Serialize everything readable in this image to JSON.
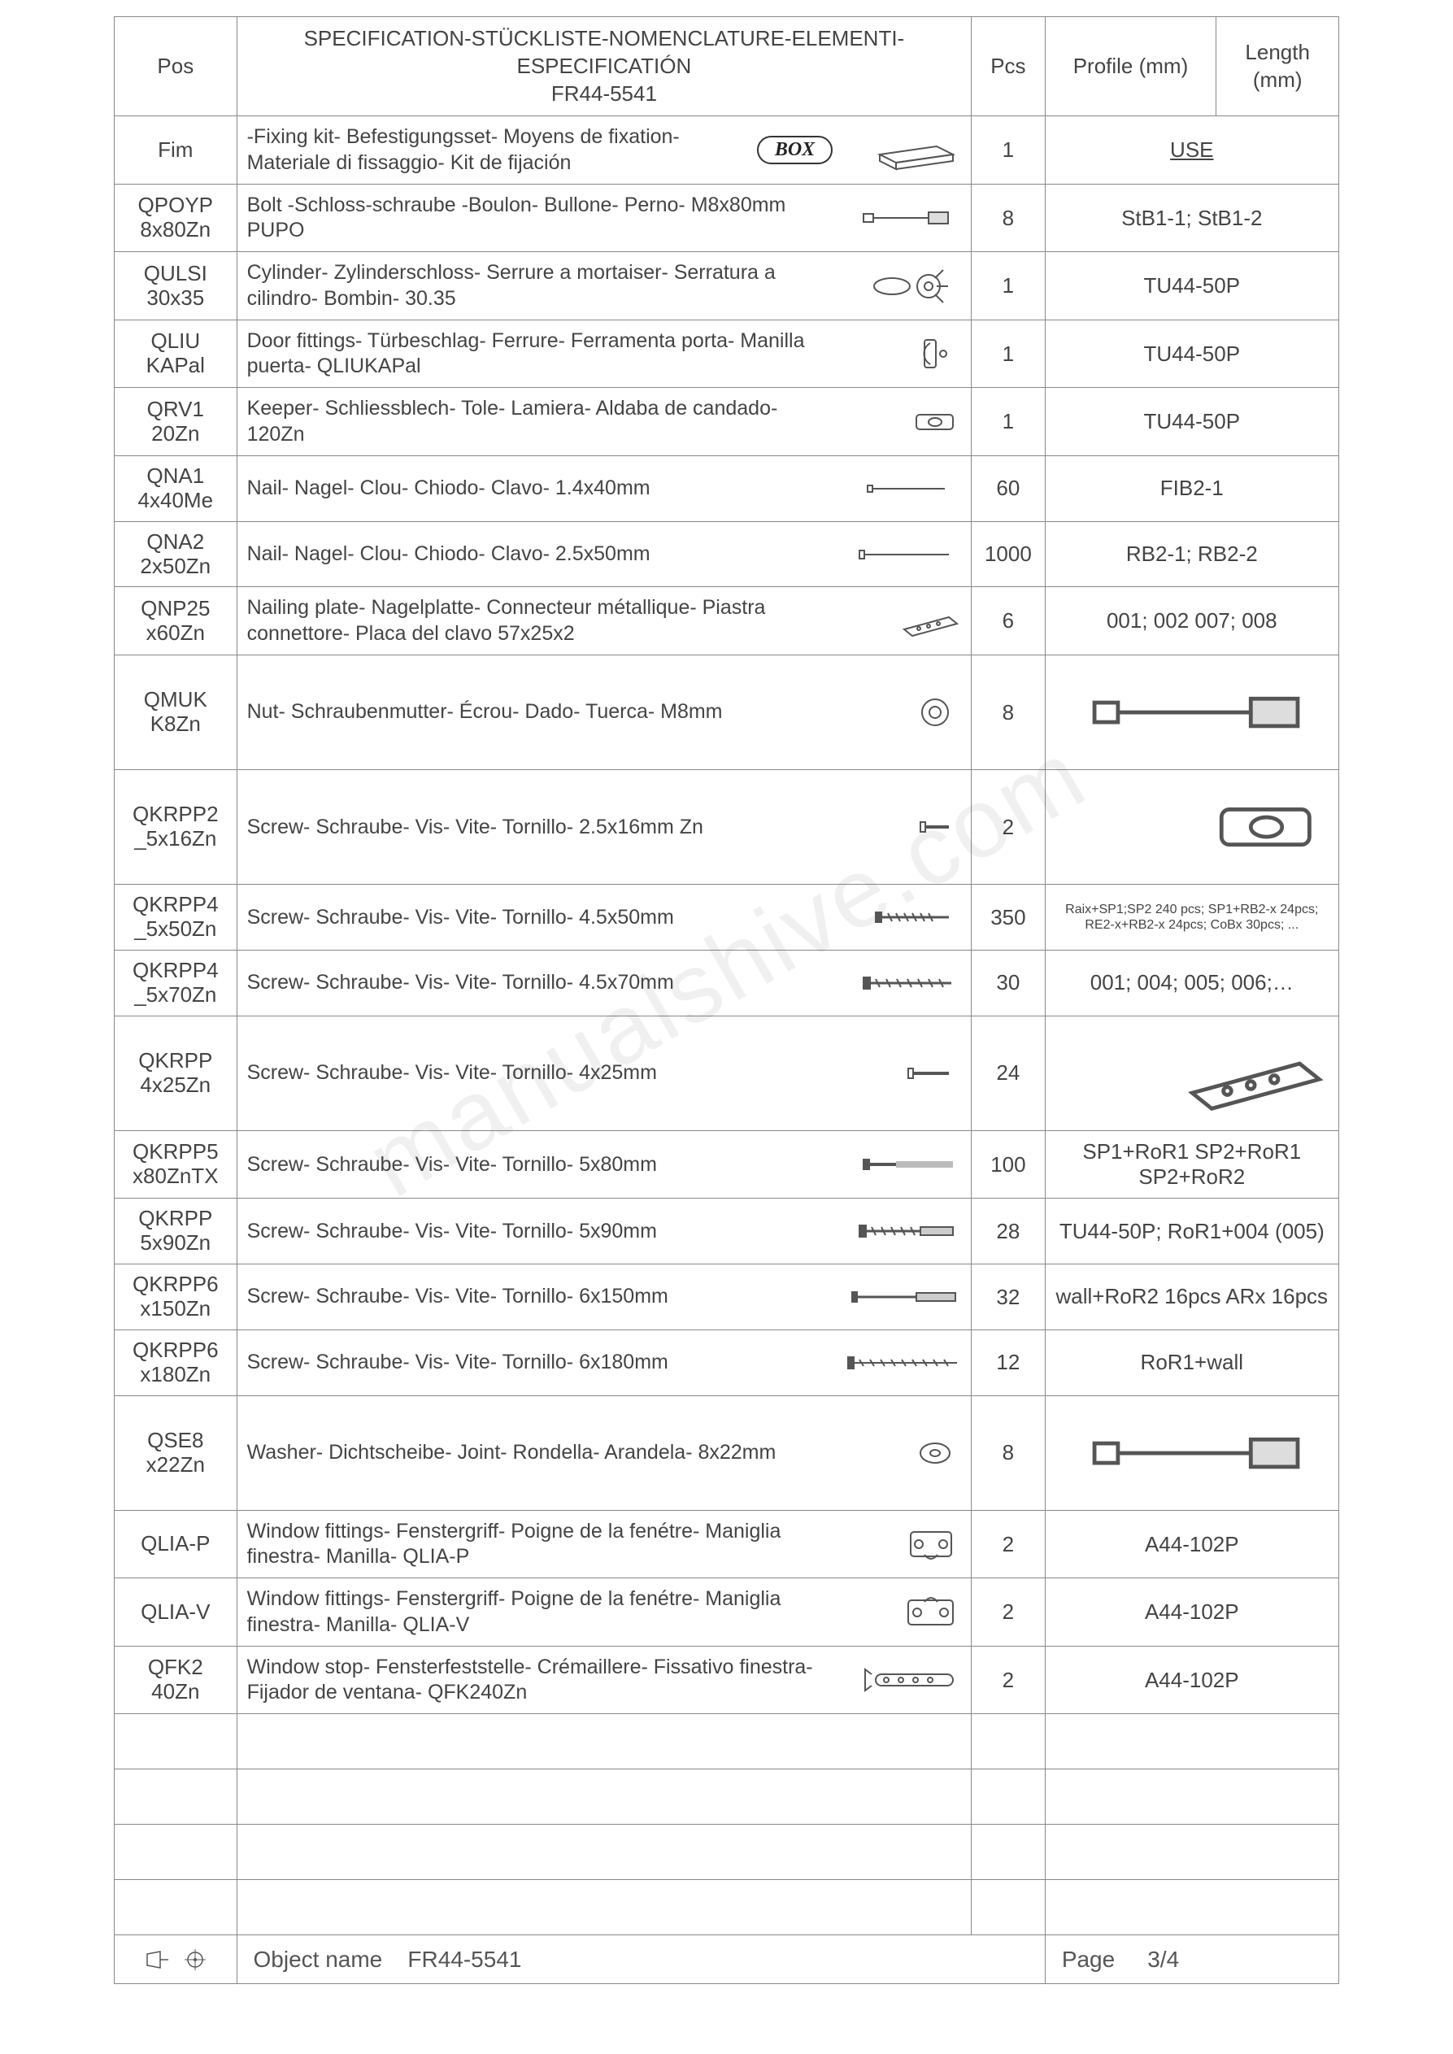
{
  "header": {
    "pos": "Pos",
    "spec_line1": "SPECIFICATION-STÜCKLISTE-NOMENCLATURE-ELEMENTI-ESPECIFICATIÓN",
    "spec_line2": "FR44-5541",
    "pcs": "Pcs",
    "profile": "Profile (mm)",
    "length": "Length (mm)"
  },
  "watermark": "manualshive.com",
  "rows": [
    {
      "pos": "Fim",
      "desc": "-Fixing kit- Befestigungsset- Moyens de fixation- Materiale di fissaggio- Kit de fijación",
      "box": "BOX",
      "pcs": "1",
      "profile": "USE",
      "profile_style": "use",
      "icon": "box"
    },
    {
      "pos": "QPOYP 8x80Zn",
      "desc": "Bolt -Schloss-schraube -Boulon- Bullone- Perno- M8x80mm PUPO",
      "pcs": "8",
      "profile": "StB1-1; StB1-2",
      "icon": "bolt"
    },
    {
      "pos": "QULSI 30x35",
      "desc": "Cylinder- Zylinderschloss- Serrure a mortaiser- Serratura a cilindro- Bombin- 30.35",
      "pcs": "1",
      "profile": "TU44-50P",
      "icon": "cylinder"
    },
    {
      "pos": "QLIU KAPal",
      "desc": "Door fittings- Türbeschlag- Ferrure- Ferramenta porta- Manilla puerta- QLIUKAPal",
      "pcs": "1",
      "profile": "TU44-50P",
      "icon": "doorfit"
    },
    {
      "pos": "QRV1 20Zn",
      "desc": "Keeper- Schliessblech- Tole- Lamiera- Aldaba de candado- 120Zn",
      "pcs": "1",
      "profile": "TU44-50P",
      "icon": "keeper"
    },
    {
      "pos": "QNA1 4x40Me",
      "desc": "Nail- Nagel- Clou- Chiodo- Clavo- 1.4x40mm",
      "pcs": "60",
      "profile": "FIB2-1",
      "icon": "nail1"
    },
    {
      "pos": "QNA2 2x50Zn",
      "desc": "Nail- Nagel- Clou- Chiodo- Clavo- 2.5x50mm",
      "pcs": "1000",
      "profile": "RB2-1; RB2-2",
      "icon": "nail2"
    },
    {
      "pos": "QNP25 x60Zn",
      "desc": "Nailing plate- Nagelplatte- Connecteur métallique- Piastra connettore- Placa del clavo 57x25x2",
      "pcs": "6",
      "profile": "001; 002 007; 008",
      "icon": "plate"
    },
    {
      "pos": "QMUK K8Zn",
      "desc": "Nut- Schraubenmutter- Écrou- Dado- Tuerca- M8mm",
      "pcs": "8",
      "profile_icon": "bolt",
      "icon": "nut"
    },
    {
      "pos": "QKRPP2 _5x16Zn",
      "desc": "Screw- Schraube- Vis- Vite- Tornillo- 2.5x16mm Zn",
      "pcs": "2",
      "profile_icon": "keeper",
      "icon": "screw16"
    },
    {
      "pos": "QKRPP4 _5x50Zn",
      "desc": "Screw- Schraube- Vis- Vite- Tornillo- 4.5x50mm",
      "pcs": "350",
      "profile": "Raix+SP1;SP2 240 pcs; SP1+RB2-x 24pcs; RE2-x+RB2-x 24pcs; CoBx 30pcs; ...",
      "profile_small": true,
      "icon": "screw50"
    },
    {
      "pos": "QKRPP4 _5x70Zn",
      "desc": "Screw- Schraube- Vis- Vite- Tornillo- 4.5x70mm",
      "pcs": "30",
      "profile": "001; 004; 005; 006;…",
      "icon": "screw70"
    },
    {
      "pos": "QKRPP 4x25Zn",
      "desc": "Screw- Schraube- Vis- Vite- Tornillo- 4x25mm",
      "pcs": "24",
      "profile_icon": "plate",
      "icon": "screw25"
    },
    {
      "pos": "QKRPP5 x80ZnTX",
      "desc": "Screw- Schraube- Vis- Vite- Tornillo- 5x80mm",
      "pcs": "100",
      "profile": "SP1+RoR1 SP2+RoR1 SP2+RoR2",
      "icon": "screw80"
    },
    {
      "pos": "QKRPP 5x90Zn",
      "desc": "Screw- Schraube- Vis- Vite- Tornillo- 5x90mm",
      "pcs": "28",
      "profile": "TU44-50P; RoR1+004 (005)",
      "icon": "screw90"
    },
    {
      "pos": "QKRPP6 x150Zn",
      "desc": "Screw- Schraube- Vis- Vite- Tornillo- 6x150mm",
      "pcs": "32",
      "profile": "wall+RoR2 16pcs ARx 16pcs",
      "icon": "screw150"
    },
    {
      "pos": "QKRPP6 x180Zn",
      "desc": "Screw- Schraube- Vis- Vite- Tornillo- 6x180mm",
      "pcs": "12",
      "profile": "RoR1+wall",
      "icon": "screw180"
    },
    {
      "pos": "QSE8 x22Zn",
      "desc": "Washer- Dichtscheibe- Joint- Rondella- Arandela- 8x22mm",
      "pcs": "8",
      "profile_icon": "bolt",
      "icon": "washer"
    },
    {
      "pos": "QLIA-P",
      "desc": "Window fittings- Fenstergriff- Poigne de la fenétre- Maniglia finestra- Manilla- QLIA-P",
      "pcs": "2",
      "profile": "A44-102P",
      "icon": "winP"
    },
    {
      "pos": "QLIA-V",
      "desc": "Window fittings- Fenstergriff- Poigne de la fenétre- Maniglia finestra- Manilla- QLIA-V",
      "pcs": "2",
      "profile": "A44-102P",
      "icon": "winV"
    },
    {
      "pos": "QFK2 40Zn",
      "desc": "Window stop- Fensterfeststelle- Crémaillere- Fissativo finestra- Fijador de ventana- QFK240Zn",
      "pcs": "2",
      "profile": "A44-102P",
      "icon": "stop"
    }
  ],
  "empty_rows": 4,
  "footer": {
    "obj_label": "Object name",
    "obj_value": "FR44-5541",
    "page_label": "Page",
    "page_value": "3/4"
  },
  "colors": {
    "border": "#888888",
    "text": "#444444",
    "watermark": "rgba(0,0,0,0.06)"
  }
}
